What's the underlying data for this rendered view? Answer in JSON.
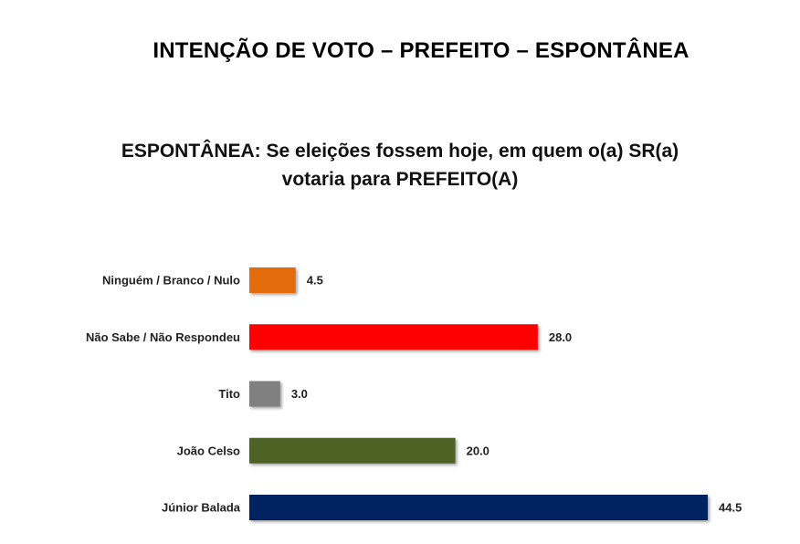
{
  "header": {
    "title": "INTENÇÃO DE VOTO – PREFEITO – ESPONTÂNEA"
  },
  "question": {
    "line1": "ESPONTÂNEA: Se eleições fossem hoje, em quem o(a) SR(a)",
    "line2": "votaria para PREFEITO(A)"
  },
  "chart_data": {
    "type": "bar",
    "orientation": "horizontal",
    "title": "",
    "xlabel": "",
    "ylabel": "",
    "grid": false,
    "legend": "none",
    "xlim": [
      0,
      44.5
    ],
    "categories": [
      "Ninguém / Branco / Nulo",
      "Não Sabe / Não Respondeu",
      "Tito",
      "João Celso",
      "Júnior Balada"
    ],
    "values": [
      4.5,
      28.0,
      3.0,
      20.0,
      44.5
    ],
    "value_labels": [
      "4.5",
      "28.0",
      "3.0",
      "20.0",
      "44.5"
    ],
    "colors": [
      "#E46C0A",
      "#FF0000",
      "#808080",
      "#4F6228",
      "#002060"
    ]
  }
}
